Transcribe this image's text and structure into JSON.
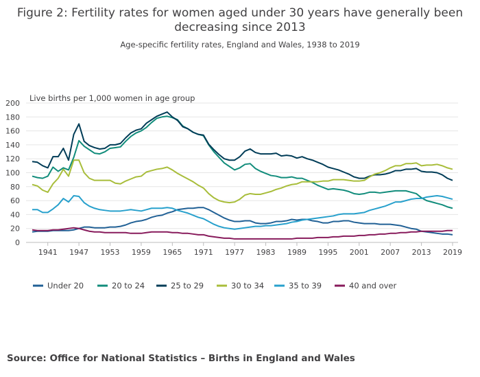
{
  "chart_data": {
    "type": "line",
    "title": [
      "Figure 2: Fertility rates for women aged under 30 years have generally been",
      "decreasing since 2013"
    ],
    "subtitle": "Age-specific fertility rates, England and Wales, 1938 to 2019",
    "y_label": "Live births per 1,000 women in age group",
    "source": "Source: Office for National Statistics – Births in England and Wales",
    "x": [
      1938,
      1939,
      1940,
      1941,
      1942,
      1943,
      1944,
      1945,
      1946,
      1947,
      1948,
      1949,
      1950,
      1951,
      1952,
      1953,
      1954,
      1955,
      1956,
      1957,
      1958,
      1959,
      1960,
      1961,
      1962,
      1963,
      1964,
      1965,
      1966,
      1967,
      1968,
      1969,
      1970,
      1971,
      1972,
      1973,
      1974,
      1975,
      1976,
      1977,
      1978,
      1979,
      1980,
      1981,
      1982,
      1983,
      1984,
      1985,
      1986,
      1987,
      1988,
      1989,
      1990,
      1991,
      1992,
      1993,
      1994,
      1995,
      1996,
      1997,
      1998,
      1999,
      2000,
      2001,
      2002,
      2003,
      2004,
      2005,
      2006,
      2007,
      2008,
      2009,
      2010,
      2011,
      2012,
      2013,
      2014,
      2015,
      2016,
      2017,
      2018,
      2019
    ],
    "xlim": [
      1938,
      2019
    ],
    "xticks": [
      1941,
      1947,
      1953,
      1959,
      1965,
      1971,
      1977,
      1983,
      1989,
      1995,
      2001,
      2007,
      2013,
      2019
    ],
    "ylim": [
      0,
      200
    ],
    "yticks": [
      0,
      20,
      40,
      60,
      80,
      100,
      120,
      140,
      160,
      180,
      200
    ],
    "grid": true,
    "legend": "bottom",
    "series": [
      {
        "name": "Under 20",
        "color": "#206095",
        "values": [
          15,
          16,
          16,
          16,
          17,
          17,
          17,
          17,
          18,
          20,
          22,
          22,
          21,
          21,
          21,
          22,
          22,
          23,
          25,
          28,
          30,
          31,
          33,
          36,
          38,
          39,
          42,
          44,
          47,
          48,
          49,
          49,
          50,
          50,
          47,
          43,
          39,
          35,
          32,
          30,
          30,
          31,
          31,
          28,
          27,
          27,
          28,
          30,
          30,
          31,
          33,
          32,
          33,
          33,
          31,
          30,
          28,
          28,
          30,
          30,
          31,
          31,
          29,
          28,
          27,
          27,
          27,
          26,
          26,
          26,
          25,
          24,
          22,
          20,
          19,
          16,
          15,
          14,
          13,
          12,
          12,
          11
        ]
      },
      {
        "name": "20 to 24",
        "color": "#118c7b",
        "values": [
          95,
          93,
          92,
          95,
          108,
          102,
          107,
          104,
          122,
          146,
          138,
          133,
          128,
          127,
          130,
          135,
          136,
          137,
          145,
          152,
          157,
          160,
          165,
          172,
          178,
          180,
          181,
          179,
          176,
          167,
          163,
          158,
          155,
          153,
          140,
          130,
          122,
          114,
          109,
          104,
          107,
          112,
          113,
          106,
          102,
          99,
          96,
          95,
          93,
          93,
          94,
          92,
          92,
          89,
          86,
          82,
          79,
          76,
          77,
          76,
          75,
          73,
          70,
          69,
          70,
          72,
          72,
          71,
          72,
          73,
          74,
          74,
          74,
          72,
          70,
          64,
          60,
          58,
          56,
          54,
          51,
          49
        ]
      },
      {
        "name": "25 to 29",
        "color": "#003c57",
        "values": [
          116,
          115,
          110,
          107,
          123,
          123,
          135,
          118,
          155,
          170,
          145,
          139,
          136,
          134,
          135,
          140,
          140,
          142,
          150,
          157,
          161,
          163,
          171,
          176,
          181,
          184,
          187,
          180,
          175,
          166,
          163,
          158,
          155,
          154,
          141,
          133,
          126,
          120,
          118,
          118,
          123,
          131,
          134,
          129,
          127,
          127,
          127,
          128,
          124,
          125,
          124,
          121,
          123,
          120,
          118,
          115,
          112,
          108,
          106,
          104,
          101,
          98,
          94,
          92,
          92,
          95,
          97,
          97,
          98,
          100,
          103,
          103,
          105,
          105,
          106,
          102,
          101,
          101,
          100,
          97,
          92,
          89
        ]
      },
      {
        "name": "30 to 34",
        "color": "#a8bd3a",
        "values": [
          83,
          81,
          75,
          72,
          84,
          92,
          105,
          95,
          118,
          118,
          100,
          92,
          89,
          89,
          89,
          89,
          85,
          84,
          88,
          91,
          94,
          95,
          101,
          103,
          105,
          106,
          108,
          104,
          99,
          95,
          91,
          87,
          82,
          78,
          70,
          64,
          60,
          58,
          57,
          58,
          62,
          68,
          70,
          69,
          69,
          71,
          73,
          76,
          78,
          81,
          83,
          84,
          87,
          87,
          87,
          87,
          88,
          88,
          90,
          90,
          90,
          89,
          88,
          88,
          89,
          94,
          98,
          100,
          103,
          107,
          110,
          110,
          113,
          113,
          114,
          110,
          111,
          111,
          112,
          110,
          107,
          105
        ]
      },
      {
        "name": "35 to 39",
        "color": "#27a0cc",
        "values": [
          47,
          47,
          43,
          43,
          48,
          54,
          63,
          58,
          67,
          66,
          57,
          52,
          49,
          47,
          46,
          45,
          45,
          45,
          46,
          47,
          46,
          45,
          47,
          49,
          49,
          49,
          50,
          49,
          46,
          44,
          42,
          39,
          36,
          34,
          30,
          26,
          23,
          21,
          20,
          19,
          20,
          21,
          22,
          23,
          23,
          24,
          24,
          25,
          26,
          27,
          29,
          30,
          32,
          33,
          34,
          35,
          36,
          37,
          38,
          40,
          41,
          41,
          41,
          42,
          43,
          46,
          48,
          50,
          52,
          55,
          58,
          58,
          60,
          62,
          63,
          63,
          65,
          66,
          67,
          66,
          64,
          62
        ]
      },
      {
        "name": "40 and over",
        "color": "#871a5b",
        "values": [
          18,
          17,
          17,
          17,
          18,
          18,
          19,
          20,
          21,
          20,
          18,
          16,
          15,
          15,
          14,
          14,
          14,
          14,
          14,
          13,
          13,
          13,
          14,
          15,
          15,
          15,
          15,
          14,
          14,
          13,
          13,
          12,
          11,
          11,
          9,
          8,
          7,
          6,
          6,
          5,
          5,
          5,
          5,
          5,
          5,
          5,
          5,
          5,
          5,
          5,
          5,
          6,
          6,
          6,
          6,
          7,
          7,
          7,
          8,
          8,
          9,
          9,
          9,
          10,
          10,
          11,
          11,
          12,
          12,
          13,
          13,
          14,
          14,
          15,
          15,
          16,
          16,
          16,
          16,
          16,
          17,
          17
        ]
      }
    ]
  }
}
